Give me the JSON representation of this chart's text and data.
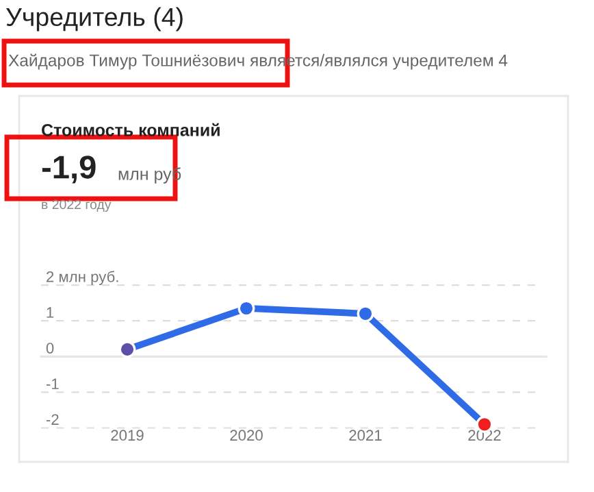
{
  "chart_data": {
    "type": "line",
    "title": "Стоимость компаний",
    "annotations": [
      "Учредитель (4)",
      "Хайдаров Тимур Тошниёзович является/являлся учредителем 4",
      "-1,9",
      "млн руб",
      "в 2022 году"
    ],
    "categories": [
      "2019",
      "2020",
      "2021",
      "2022"
    ],
    "series": [
      {
        "color": "#2f6be6",
        "colors": [
          "#5b4fa8",
          "#2f6be6",
          "#2f6be6",
          "#f01e1e"
        ],
        "values": [
          0.2,
          1.35,
          1.2,
          -1.9
        ]
      }
    ],
    "ylim": [
      -2.95,
      7.3
    ],
    "yticks": [
      {
        "value": 2,
        "label": "2 млн руб."
      },
      1,
      0,
      -1,
      -2
    ],
    "ref_lines": [
      {
        "axis": "y",
        "value": 0,
        "color": "#e6e6e6"
      }
    ],
    "grid": "y",
    "legend": false,
    "marker": "circle",
    "line_style": "solid"
  }
}
